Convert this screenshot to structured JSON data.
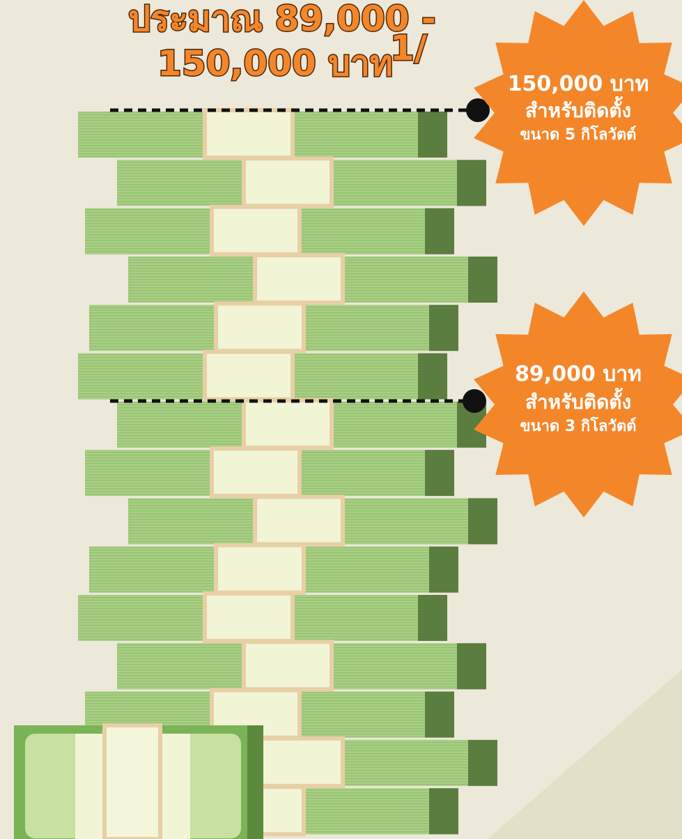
{
  "header": {
    "title_line1": "ประมาณ 89,000 -",
    "title_line2": "150,000 บาท",
    "footnote_mark": "1/"
  },
  "badges": [
    {
      "amount": "150,000 บาท",
      "line2": "สำหรับติดตั้ง",
      "line3": "ขนาด 5 กิโลวัตต์"
    },
    {
      "amount": "89,000 บาท",
      "line2": "สำหรับติดตั้ง",
      "line3": "ขนาด 3 กิโลวัตต์"
    }
  ]
}
